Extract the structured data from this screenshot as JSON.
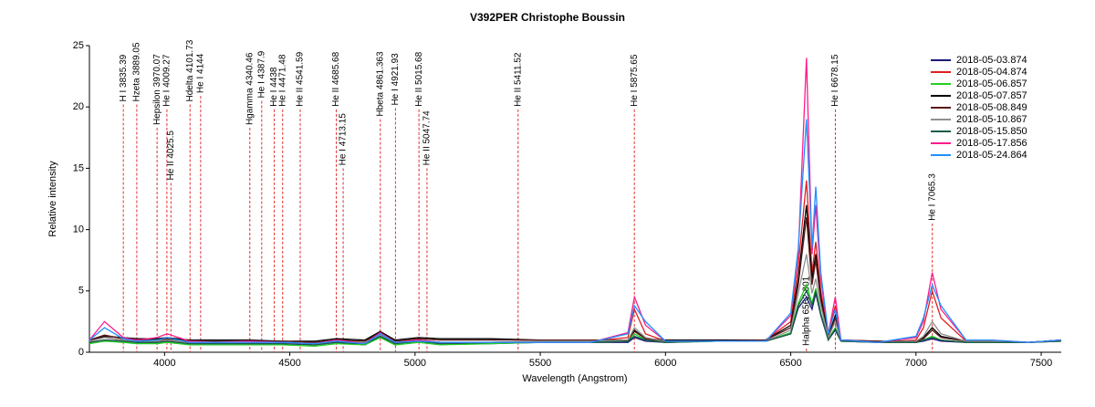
{
  "chart_data": {
    "type": "line",
    "title": "V392PER   Christophe Boussin",
    "x_label": "Wavelength (Angstrom)",
    "y_label": "Relative intensity",
    "xlim": [
      3700,
      7580
    ],
    "ylim": [
      0,
      25
    ],
    "xticks": [
      4000,
      4500,
      5000,
      5500,
      6000,
      6500,
      7000,
      7500
    ],
    "yticks": [
      0,
      5,
      10,
      15,
      20,
      25
    ],
    "grid": false,
    "legend": "upper right",
    "annotation_color": "#e03030",
    "x": [
      3700,
      3760,
      3835,
      3889,
      3970,
      4010,
      4100,
      4200,
      4340,
      4471,
      4600,
      4686,
      4800,
      4861,
      4920,
      5015,
      5100,
      5300,
      5500,
      5700,
      5850,
      5876,
      5920,
      6000,
      6200,
      6400,
      6500,
      6530,
      6563,
      6585,
      6600,
      6620,
      6650,
      6678,
      6700,
      6850,
      7000,
      7030,
      7065,
      7100,
      7200,
      7300,
      7450,
      7580
    ],
    "series": [
      {
        "name": "2018-05-03.874",
        "color": "#1a1a7a",
        "values": [
          0.8,
          1.0,
          0.9,
          0.8,
          0.8,
          0.9,
          0.7,
          0.7,
          0.7,
          0.7,
          0.6,
          0.8,
          0.6,
          1.3,
          0.7,
          0.9,
          0.7,
          0.7,
          0.8,
          0.8,
          0.8,
          1.2,
          0.9,
          0.8,
          0.9,
          0.9,
          1.5,
          3.6,
          4.5,
          3.5,
          4.8,
          3.0,
          1.0,
          1.8,
          0.9,
          0.8,
          0.8,
          0.9,
          1.1,
          0.9,
          0.8,
          0.8,
          0.8,
          0.9
        ]
      },
      {
        "name": "2018-05-04.874",
        "color": "#e02020",
        "values": [
          0.9,
          1.2,
          1.0,
          0.9,
          0.9,
          1.0,
          0.8,
          0.8,
          0.8,
          0.8,
          0.7,
          0.9,
          0.8,
          1.5,
          0.8,
          1.0,
          0.8,
          0.8,
          0.9,
          0.9,
          1.2,
          3.5,
          1.5,
          0.9,
          0.9,
          1.0,
          2.5,
          7.0,
          14.0,
          6.5,
          9.0,
          5.0,
          1.5,
          3.8,
          1.0,
          0.8,
          1.0,
          2.0,
          5.0,
          2.8,
          0.9,
          0.9,
          0.8,
          1.0
        ]
      },
      {
        "name": "2018-05-06.857",
        "color": "#20d020",
        "values": [
          0.7,
          0.9,
          0.8,
          0.7,
          0.7,
          0.8,
          0.6,
          0.6,
          0.6,
          0.6,
          0.5,
          0.7,
          0.6,
          1.2,
          0.6,
          0.8,
          0.6,
          0.7,
          0.8,
          0.8,
          0.9,
          1.5,
          1.0,
          0.8,
          0.9,
          0.9,
          1.6,
          4.0,
          5.5,
          4.0,
          5.2,
          3.2,
          1.1,
          2.0,
          0.9,
          0.8,
          0.8,
          1.0,
          1.3,
          1.0,
          0.8,
          0.8,
          0.8,
          0.9
        ]
      },
      {
        "name": "2018-05-07.857",
        "color": "#000000",
        "values": [
          1.0,
          1.3,
          1.2,
          1.1,
          1.1,
          1.2,
          1.0,
          1.0,
          1.0,
          0.9,
          0.9,
          1.1,
          1.0,
          1.7,
          1.0,
          1.2,
          1.1,
          1.1,
          1.0,
          1.0,
          1.0,
          1.8,
          1.1,
          1.0,
          1.0,
          1.0,
          2.2,
          6.0,
          12.0,
          6.0,
          8.0,
          4.5,
          1.3,
          3.0,
          1.0,
          0.9,
          0.8,
          1.2,
          2.0,
          1.3,
          0.9,
          0.9,
          0.8,
          1.0
        ]
      },
      {
        "name": "2018-05-08.849",
        "color": "#5a1a1a",
        "values": [
          1.0,
          1.4,
          1.1,
          1.0,
          1.0,
          1.1,
          0.9,
          0.9,
          0.9,
          0.9,
          0.8,
          1.0,
          0.9,
          1.6,
          0.9,
          1.1,
          1.0,
          1.0,
          1.0,
          1.0,
          1.0,
          1.7,
          1.1,
          0.9,
          0.9,
          1.0,
          2.0,
          5.5,
          11.0,
          5.5,
          7.5,
          4.2,
          1.2,
          2.8,
          1.0,
          0.9,
          0.9,
          1.1,
          1.8,
          1.2,
          0.9,
          0.9,
          0.8,
          1.0
        ]
      },
      {
        "name": "2018-05-10.867",
        "color": "#909090",
        "values": [
          0.9,
          1.2,
          1.0,
          0.9,
          0.9,
          1.0,
          0.8,
          0.8,
          0.8,
          0.8,
          0.7,
          0.9,
          0.8,
          1.4,
          0.8,
          1.0,
          0.8,
          0.8,
          0.9,
          0.9,
          1.0,
          2.0,
          1.2,
          0.9,
          0.9,
          0.9,
          1.8,
          4.8,
          8.0,
          4.8,
          6.0,
          3.8,
          1.2,
          2.5,
          0.9,
          0.8,
          0.9,
          1.3,
          2.5,
          1.5,
          0.9,
          0.9,
          0.8,
          0.9
        ]
      },
      {
        "name": "2018-05-15.850",
        "color": "#1a5a4a",
        "values": [
          0.8,
          1.0,
          0.9,
          0.8,
          0.8,
          0.9,
          0.7,
          0.7,
          0.7,
          0.7,
          0.6,
          0.8,
          0.7,
          1.3,
          0.7,
          0.9,
          0.7,
          0.8,
          0.8,
          0.8,
          0.9,
          1.3,
          1.0,
          0.8,
          0.9,
          0.9,
          1.5,
          3.8,
          5.0,
          3.8,
          5.0,
          3.1,
          1.0,
          1.9,
          0.9,
          0.8,
          0.8,
          1.0,
          1.2,
          1.0,
          0.8,
          0.8,
          0.8,
          0.9
        ]
      },
      {
        "name": "2018-05-17.856",
        "color": "#ff1a8c",
        "values": [
          1.0,
          2.5,
          1.2,
          1.0,
          1.2,
          1.5,
          0.9,
          0.8,
          0.9,
          0.8,
          0.7,
          1.0,
          0.7,
          1.6,
          0.8,
          1.0,
          0.8,
          0.8,
          0.8,
          0.8,
          1.6,
          4.5,
          2.2,
          0.9,
          0.9,
          0.9,
          3.0,
          8.0,
          24.0,
          8.0,
          12.0,
          6.0,
          1.5,
          4.5,
          1.0,
          0.8,
          1.2,
          2.5,
          6.5,
          3.5,
          1.0,
          1.0,
          0.8,
          1.0
        ]
      },
      {
        "name": "2018-05-24.864",
        "color": "#2090ff",
        "values": [
          1.0,
          2.0,
          1.1,
          0.9,
          1.0,
          1.2,
          0.8,
          0.8,
          0.8,
          0.8,
          0.7,
          0.9,
          0.7,
          1.5,
          0.8,
          0.9,
          0.8,
          0.8,
          0.8,
          0.8,
          1.5,
          3.8,
          2.5,
          0.9,
          0.9,
          0.9,
          3.2,
          8.5,
          19.0,
          8.5,
          13.5,
          6.5,
          1.5,
          3.5,
          1.0,
          0.8,
          1.3,
          2.8,
          5.5,
          3.8,
          1.0,
          1.0,
          0.8,
          1.0
        ]
      }
    ],
    "annotations": [
      {
        "label": "H I 3835.39",
        "x": 3835.39,
        "y": 20.2
      },
      {
        "label": "Hzeta 3889.05",
        "x": 3889.05,
        "y": 20.2
      },
      {
        "label": "Hepsilon 3970.07",
        "x": 3970.07,
        "y": 18.3
      },
      {
        "label": "He I 4009.27",
        "x": 4009.27,
        "y": 19.8
      },
      {
        "label": "He II 4025.5",
        "x": 4025.5,
        "y": 13.8
      },
      {
        "label": "Hdelta 4101.73",
        "x": 4101.73,
        "y": 20.2
      },
      {
        "label": "He I 4144",
        "x": 4144,
        "y": 20.9
      },
      {
        "label": "Hgamma 4340.46",
        "x": 4340.46,
        "y": 18.3
      },
      {
        "label": "He I 4387.9",
        "x": 4387.9,
        "y": 20.5
      },
      {
        "label": "He I 4438",
        "x": 4438,
        "y": 19.8
      },
      {
        "label": "He I 4471.48",
        "x": 4471.48,
        "y": 19.8
      },
      {
        "label": "He II 4541.59",
        "x": 4541.59,
        "y": 19.8
      },
      {
        "label": "He II 4685.68",
        "x": 4685.68,
        "y": 19.8
      },
      {
        "label": "He I 4713.15",
        "x": 4713.15,
        "y": 15.0
      },
      {
        "label": "Hbeta 4861.363",
        "x": 4861.363,
        "y": 19.0
      },
      {
        "label": "He I 4921.93",
        "x": 4921.93,
        "y": 19.9
      },
      {
        "label": "He II 5015.68",
        "x": 5015.68,
        "y": 19.8
      },
      {
        "label": "He II 5047.74",
        "x": 5047.74,
        "y": 15.0
      },
      {
        "label": "He II 5411.52",
        "x": 5411.52,
        "y": 19.8
      },
      {
        "label": "He I 5875.65",
        "x": 5875.65,
        "y": 19.8
      },
      {
        "label": "Halpha 6562.801",
        "x": 6562.801,
        "y": 0.3
      },
      {
        "label": "He I 6678.15",
        "x": 6678.15,
        "y": 19.8
      },
      {
        "label": "He I 7065.3",
        "x": 7065.3,
        "y": 10.5
      }
    ]
  }
}
